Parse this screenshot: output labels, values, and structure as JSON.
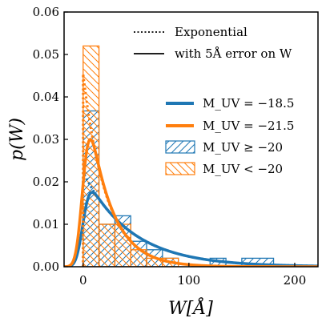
{
  "chart_data": {
    "type": "histogram",
    "xlabel": "W[Å]",
    "ylabel": "p(W)",
    "xlim": [
      -18,
      222
    ],
    "ylim": [
      0,
      0.06
    ],
    "grid": false,
    "x_ticks": [
      {
        "value": 0,
        "label": "0"
      },
      {
        "value": 100,
        "label": "100"
      },
      {
        "value": 200,
        "label": "200"
      }
    ],
    "y_ticks": [
      {
        "value": 0,
        "label": "0.00"
      },
      {
        "value": 0.01,
        "label": "0.01"
      },
      {
        "value": 0.02,
        "label": "0.02"
      },
      {
        "value": 0.03,
        "label": "0.03"
      },
      {
        "value": 0.04,
        "label": "0.04"
      },
      {
        "value": 0.05,
        "label": "0.05"
      },
      {
        "value": 0.06,
        "label": "0.06"
      }
    ],
    "style_legend": {
      "placement": "top-right",
      "entries": [
        {
          "text": "Exponential",
          "style": "dotted"
        },
        {
          "text": "with 5Å error on W",
          "style": "solid"
        }
      ]
    },
    "series_legend": {
      "placement": "center-right",
      "entries": [
        {
          "text": "M_UV = −18.5",
          "kind": "line",
          "color": "#1f77b4"
        },
        {
          "text": "M_UV = −21.5",
          "kind": "line",
          "color": "#ff7f0e"
        },
        {
          "text": "M_UV ≥ −20",
          "kind": "hatch-forward",
          "color": "#1f77b4"
        },
        {
          "text": "M_UV < −20",
          "kind": "hatch-back",
          "color": "#ff7f0e"
        }
      ]
    },
    "curves": [
      {
        "name": "M_UV = −18.5",
        "color": "#1f77b4",
        "exp_scale": 45,
        "error_sigma": 5
      },
      {
        "name": "M_UV = −21.5",
        "color": "#ff7f0e",
        "exp_scale": 22,
        "error_sigma": 5
      }
    ],
    "histograms": [
      {
        "name": "M_UV ≥ −20",
        "color": "#1f77b4",
        "hatch": "forward",
        "bins": [
          {
            "x0": 0,
            "x1": 15,
            "value": 0.0367
          },
          {
            "x0": 15,
            "x1": 30,
            "value": 0.01
          },
          {
            "x0": 30,
            "x1": 45,
            "value": 0.012
          },
          {
            "x0": 45,
            "x1": 60,
            "value": 0.006
          },
          {
            "x0": 60,
            "x1": 75,
            "value": 0.004
          },
          {
            "x0": 75,
            "x1": 90,
            "value": 0.002
          },
          {
            "x0": 120,
            "x1": 135,
            "value": 0.002
          },
          {
            "x0": 150,
            "x1": 180,
            "value": 0.002
          }
        ]
      },
      {
        "name": "M_UV < −20",
        "color": "#ff7f0e",
        "hatch": "back",
        "bins": [
          {
            "x0": 0,
            "x1": 15,
            "value": 0.052
          },
          {
            "x0": 15,
            "x1": 30,
            "value": 0.01
          },
          {
            "x0": 30,
            "x1": 45,
            "value": 0.01
          },
          {
            "x0": 45,
            "x1": 60,
            "value": 0.004
          },
          {
            "x0": 60,
            "x1": 75,
            "value": 0.002
          },
          {
            "x0": 75,
            "x1": 90,
            "value": 0.002
          }
        ]
      }
    ]
  }
}
